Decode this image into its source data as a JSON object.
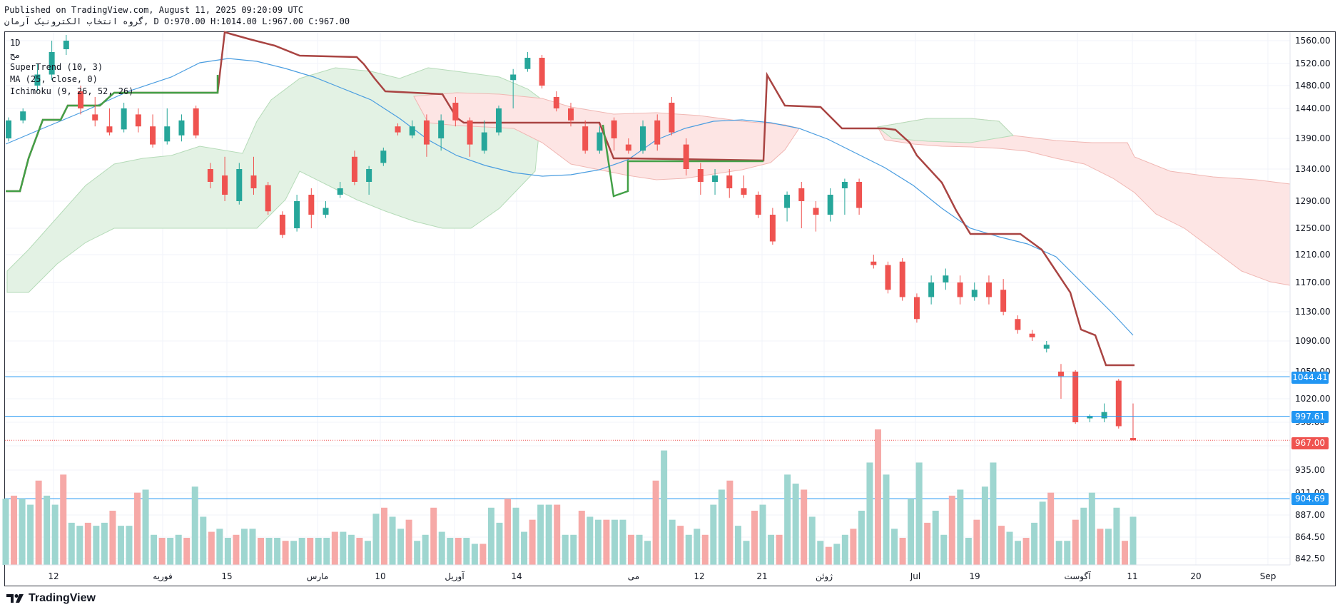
{
  "header": {
    "published_line": "Published on TradingView.com, August 11, 2025 09:20:09 UTC",
    "symbol_line": "گروه انتخاب الکترونیک آرمان, D O:970.00 H:1014.00 L:967.00 C:967.00"
  },
  "legend": {
    "line1": "1D",
    "line2": "مح",
    "supertrend": "SuperTrend (10, 3)",
    "ma": "MA (25, close, 0)",
    "ichimoku": "Ichimoku (9, 26, 52, 26)"
  },
  "footer": {
    "brand": "TradingView",
    "logo_icon": "tradingview-logo-icon"
  },
  "price_tags": {
    "level1": "1044.41",
    "level2": "997.61",
    "last": "967.00",
    "level3": "904.69"
  },
  "colors": {
    "up": "#26a69a",
    "down": "#ef5350",
    "volume_up": "#9ed6d0",
    "volume_down": "#f6a9a7",
    "ma": "#4a9de0",
    "supertrend_up": "#43a047",
    "supertrend_down": "#a94442",
    "cloud_bull": "#e3f2e4",
    "cloud_bear": "#fde5e4",
    "hline": "#2196f3",
    "tag_blue": "#2196f3",
    "tag_red": "#ef5350"
  },
  "chart_data": {
    "type": "candlestick",
    "y_axis_ticks": [
      "1560.00",
      "1520.00",
      "1480.00",
      "1440.00",
      "1390.00",
      "1340.00",
      "1290.00",
      "1250.00",
      "1210.00",
      "1170.00",
      "1130.00",
      "1090.00",
      "1050.00",
      "1020.00",
      "990.00",
      "960.00",
      "935.00",
      "911.00",
      "887.00",
      "864.50",
      "842.50"
    ],
    "x_axis_ticks": [
      "12",
      "فوریه",
      "15",
      "مارس",
      "10",
      "آوریل",
      "14",
      "می",
      "12",
      "21",
      "ژوئن",
      "Jul",
      "19",
      "آگوست",
      "11",
      "20",
      "Sep"
    ],
    "horizontal_levels": [
      1044.41,
      997.61,
      904.69
    ],
    "last_price": 967.0,
    "ohlc_last": {
      "open": 970.0,
      "high": 1014.0,
      "low": 967.0,
      "close": 967.0
    },
    "candles_sample": [
      {
        "o": 1390,
        "c": 1420,
        "h": 1425,
        "l": 1385
      },
      {
        "o": 1420,
        "c": 1435,
        "h": 1440,
        "l": 1415
      },
      {
        "o": 1480,
        "c": 1500,
        "h": 1520,
        "l": 1470
      },
      {
        "o": 1500,
        "c": 1540,
        "h": 1560,
        "l": 1490
      },
      {
        "o": 1545,
        "c": 1560,
        "h": 1570,
        "l": 1535
      },
      {
        "o": 1470,
        "c": 1440,
        "h": 1480,
        "l": 1430
      },
      {
        "o": 1430,
        "c": 1420,
        "h": 1460,
        "l": 1410
      },
      {
        "o": 1410,
        "c": 1400,
        "h": 1440,
        "l": 1395
      },
      {
        "o": 1405,
        "c": 1440,
        "h": 1450,
        "l": 1400
      },
      {
        "o": 1430,
        "c": 1410,
        "h": 1440,
        "l": 1400
      },
      {
        "o": 1410,
        "c": 1380,
        "h": 1430,
        "l": 1375
      },
      {
        "o": 1385,
        "c": 1410,
        "h": 1440,
        "l": 1380
      },
      {
        "o": 1395,
        "c": 1420,
        "h": 1430,
        "l": 1385
      },
      {
        "o": 1440,
        "c": 1395,
        "h": 1445,
        "l": 1390
      },
      {
        "o": 1340,
        "c": 1320,
        "h": 1350,
        "l": 1310
      },
      {
        "o": 1330,
        "c": 1300,
        "h": 1360,
        "l": 1290
      },
      {
        "o": 1290,
        "c": 1340,
        "h": 1350,
        "l": 1285
      },
      {
        "o": 1330,
        "c": 1310,
        "h": 1360,
        "l": 1300
      },
      {
        "o": 1315,
        "c": 1275,
        "h": 1320,
        "l": 1270
      },
      {
        "o": 1270,
        "c": 1240,
        "h": 1275,
        "l": 1235
      },
      {
        "o": 1250,
        "c": 1290,
        "h": 1300,
        "l": 1245
      },
      {
        "o": 1300,
        "c": 1270,
        "h": 1310,
        "l": 1250
      },
      {
        "o": 1270,
        "c": 1280,
        "h": 1290,
        "l": 1265
      },
      {
        "o": 1300,
        "c": 1310,
        "h": 1320,
        "l": 1295
      },
      {
        "o": 1360,
        "c": 1320,
        "h": 1370,
        "l": 1315
      },
      {
        "o": 1320,
        "c": 1340,
        "h": 1345,
        "l": 1300
      },
      {
        "o": 1350,
        "c": 1370,
        "h": 1375,
        "l": 1345
      },
      {
        "o": 1410,
        "c": 1400,
        "h": 1415,
        "l": 1395
      },
      {
        "o": 1395,
        "c": 1410,
        "h": 1420,
        "l": 1390
      },
      {
        "o": 1420,
        "c": 1380,
        "h": 1430,
        "l": 1360
      },
      {
        "o": 1390,
        "c": 1420,
        "h": 1430,
        "l": 1370
      },
      {
        "o": 1450,
        "c": 1420,
        "h": 1460,
        "l": 1410
      },
      {
        "o": 1420,
        "c": 1380,
        "h": 1425,
        "l": 1360
      },
      {
        "o": 1370,
        "c": 1400,
        "h": 1420,
        "l": 1365
      },
      {
        "o": 1400,
        "c": 1440,
        "h": 1445,
        "l": 1395
      },
      {
        "o": 1490,
        "c": 1500,
        "h": 1510,
        "l": 1440
      },
      {
        "o": 1510,
        "c": 1530,
        "h": 1540,
        "l": 1505
      },
      {
        "o": 1530,
        "c": 1480,
        "h": 1535,
        "l": 1475
      },
      {
        "o": 1460,
        "c": 1440,
        "h": 1470,
        "l": 1435
      },
      {
        "o": 1440,
        "c": 1420,
        "h": 1450,
        "l": 1410
      },
      {
        "o": 1410,
        "c": 1370,
        "h": 1420,
        "l": 1365
      },
      {
        "o": 1370,
        "c": 1400,
        "h": 1410,
        "l": 1365
      },
      {
        "o": 1420,
        "c": 1390,
        "h": 1425,
        "l": 1370
      },
      {
        "o": 1380,
        "c": 1370,
        "h": 1390,
        "l": 1365
      },
      {
        "o": 1370,
        "c": 1410,
        "h": 1420,
        "l": 1365
      },
      {
        "o": 1420,
        "c": 1380,
        "h": 1430,
        "l": 1370
      },
      {
        "o": 1450,
        "c": 1400,
        "h": 1460,
        "l": 1395
      },
      {
        "o": 1380,
        "c": 1340,
        "h": 1390,
        "l": 1330
      },
      {
        "o": 1340,
        "c": 1320,
        "h": 1350,
        "l": 1300
      },
      {
        "o": 1320,
        "c": 1330,
        "h": 1340,
        "l": 1300
      },
      {
        "o": 1330,
        "c": 1310,
        "h": 1340,
        "l": 1295
      },
      {
        "o": 1310,
        "c": 1300,
        "h": 1330,
        "l": 1295
      },
      {
        "o": 1300,
        "c": 1270,
        "h": 1305,
        "l": 1265
      },
      {
        "o": 1270,
        "c": 1230,
        "h": 1280,
        "l": 1225
      },
      {
        "o": 1280,
        "c": 1300,
        "h": 1305,
        "l": 1260
      },
      {
        "o": 1310,
        "c": 1290,
        "h": 1320,
        "l": 1250
      },
      {
        "o": 1280,
        "c": 1270,
        "h": 1290,
        "l": 1245
      },
      {
        "o": 1270,
        "c": 1300,
        "h": 1310,
        "l": 1260
      },
      {
        "o": 1310,
        "c": 1320,
        "h": 1325,
        "l": 1270
      },
      {
        "o": 1320,
        "c": 1280,
        "h": 1325,
        "l": 1270
      },
      {
        "o": 1200,
        "c": 1195,
        "h": 1210,
        "l": 1190
      },
      {
        "o": 1195,
        "c": 1160,
        "h": 1200,
        "l": 1155
      },
      {
        "o": 1200,
        "c": 1150,
        "h": 1205,
        "l": 1145
      },
      {
        "o": 1150,
        "c": 1120,
        "h": 1155,
        "l": 1115
      },
      {
        "o": 1150,
        "c": 1170,
        "h": 1180,
        "l": 1140
      },
      {
        "o": 1170,
        "c": 1180,
        "h": 1190,
        "l": 1160
      },
      {
        "o": 1170,
        "c": 1150,
        "h": 1180,
        "l": 1140
      },
      {
        "o": 1150,
        "c": 1160,
        "h": 1170,
        "l": 1145
      },
      {
        "o": 1170,
        "c": 1150,
        "h": 1180,
        "l": 1140
      },
      {
        "o": 1160,
        "c": 1130,
        "h": 1175,
        "l": 1125
      },
      {
        "o": 1120,
        "c": 1105,
        "h": 1125,
        "l": 1100
      },
      {
        "o": 1100,
        "c": 1095,
        "h": 1105,
        "l": 1090
      },
      {
        "o": 1080,
        "c": 1085,
        "h": 1090,
        "l": 1075
      },
      {
        "o": 1050,
        "c": 1045,
        "h": 1060,
        "l": 1020
      },
      {
        "o": 1050,
        "c": 990,
        "h": 1052,
        "l": 988
      },
      {
        "o": 995,
        "c": 998,
        "h": 1000,
        "l": 990
      },
      {
        "o": 995,
        "c": 1003,
        "h": 1014,
        "l": 990
      },
      {
        "o": 1040,
        "c": 985,
        "h": 1042,
        "l": 982
      },
      {
        "o": 970,
        "c": 967,
        "h": 1014,
        "l": 967
      }
    ],
    "volume_sample": [
      22,
      23,
      22,
      20,
      28,
      23,
      20,
      30,
      14,
      13,
      14,
      13,
      14,
      18,
      13,
      13,
      24,
      25,
      10,
      9,
      9,
      10,
      9,
      26,
      16,
      11,
      12,
      9,
      10,
      12,
      12,
      9,
      9,
      9,
      8,
      8,
      9,
      9,
      9,
      9,
      11,
      11,
      10,
      9,
      8,
      17,
      19,
      16,
      12,
      15,
      8,
      10,
      19,
      11,
      9,
      9,
      9,
      7,
      7,
      19,
      14,
      22,
      19,
      11,
      15,
      20,
      20,
      20,
      10,
      10,
      18,
      16,
      15,
      15,
      15,
      15,
      10,
      10,
      8,
      28,
      38,
      15,
      13,
      10,
      12,
      10,
      20,
      25,
      28,
      13,
      8,
      18,
      20,
      10,
      10,
      30,
      27,
      25,
      16,
      8,
      6,
      7,
      10,
      12,
      18,
      34,
      45,
      30,
      12,
      9,
      22,
      34,
      14,
      18,
      10,
      23,
      25,
      9,
      15,
      26,
      34,
      13,
      11,
      8,
      9,
      14,
      21,
      24,
      8,
      8,
      15,
      19,
      24,
      12,
      12,
      19,
      8,
      16
    ]
  }
}
